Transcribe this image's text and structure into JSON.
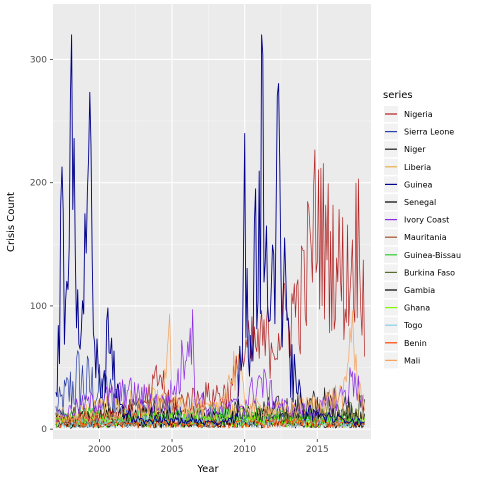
{
  "chart_data": {
    "type": "line",
    "title": "",
    "xlabel": "Year",
    "ylabel": "Crisis Count",
    "xlim": [
      1996.8,
      2018.7
    ],
    "ylim": [
      -8,
      345
    ],
    "x_ticks": [
      2000,
      2005,
      2010,
      2015
    ],
    "x_tick_labels": [
      "2000",
      "2005",
      "2010",
      "2015"
    ],
    "y_ticks": [
      0,
      100,
      200,
      300
    ],
    "y_tick_labels": [
      "0",
      "100",
      "200",
      "300"
    ],
    "grid": true,
    "legend_title": "series",
    "legend_position": "right",
    "series": [
      {
        "name": "Nigeria",
        "color": "#b22222",
        "mode": "seg",
        "x": [
          1997.0,
          2003.0,
          2004.2,
          2004.8,
          2006.5,
          2009.0,
          2010.0,
          2012.0,
          2013.0,
          2014.0,
          2015.0,
          2015.6,
          2016.3,
          2017.0,
          2017.5,
          2018.0,
          2018.3
        ],
        "values": [
          8,
          15,
          45,
          20,
          25,
          30,
          60,
          75,
          90,
          110,
          175,
          145,
          135,
          120,
          140,
          160,
          70
        ]
      },
      {
        "name": "Sierra Leone",
        "color": "#2b3fa8",
        "mode": "low",
        "x": [
          1997.0,
          1998.5,
          2000.0,
          2003.0,
          2006.0,
          2009.0,
          2012.0,
          2015.0,
          2018.3
        ],
        "values": [
          15,
          40,
          30,
          15,
          10,
          10,
          10,
          8,
          6
        ]
      },
      {
        "name": "Niger",
        "color": "#1a1a1a",
        "mode": "low",
        "x": [
          1997.0,
          2000.0,
          2004.0,
          2008.0,
          2010.0,
          2012.0,
          2016.0,
          2018.3
        ],
        "values": [
          10,
          12,
          15,
          10,
          15,
          15,
          20,
          15
        ]
      },
      {
        "name": "Liberia",
        "color": "#e8b04b",
        "mode": "low",
        "x": [
          1997.0,
          2000.0,
          2003.0,
          2006.0,
          2009.0,
          2012.0,
          2015.0,
          2018.3
        ],
        "values": [
          10,
          15,
          20,
          15,
          12,
          10,
          12,
          10
        ]
      },
      {
        "name": "Guinea",
        "color": "#00008b",
        "mode": "spike",
        "x": [
          1997.0,
          1997.4,
          1997.7,
          1998.1,
          1998.6,
          1999.3,
          2000.0,
          2000.6,
          2001.5,
          2003.0,
          2005.0,
          2008.0,
          2009.5,
          2010.0,
          2010.4,
          2010.7,
          2011.2,
          2011.7,
          2012.3,
          2013.0,
          2014.0,
          2016.0,
          2018.3
        ],
        "values": [
          30,
          220,
          90,
          330,
          60,
          285,
          40,
          100,
          20,
          8,
          8,
          6,
          10,
          240,
          70,
          180,
          330,
          70,
          290,
          90,
          20,
          10,
          6
        ]
      },
      {
        "name": "Senegal",
        "color": "#000000",
        "mode": "low",
        "x": [
          1997.0,
          2000.0,
          2004.0,
          2008.0,
          2012.0,
          2016.0,
          2018.3
        ],
        "values": [
          8,
          10,
          10,
          8,
          10,
          10,
          8
        ]
      },
      {
        "name": "Ivory Coast",
        "color": "#8a2be2",
        "mode": "seg",
        "x": [
          1997.0,
          1999.0,
          2002.0,
          2004.5,
          2005.5,
          2006.3,
          2006.6,
          2007.5,
          2010.0,
          2011.0,
          2012.0,
          2013.0,
          2015.0,
          2017.0,
          2017.6,
          2018.3
        ],
        "values": [
          10,
          20,
          30,
          20,
          40,
          95,
          30,
          15,
          20,
          40,
          25,
          15,
          15,
          30,
          45,
          10
        ]
      },
      {
        "name": "Mauritania",
        "color": "#a0522d",
        "mode": "low",
        "x": [
          1997.0,
          2002.0,
          2007.0,
          2012.0,
          2018.3
        ],
        "values": [
          5,
          6,
          5,
          6,
          5
        ]
      },
      {
        "name": "Guinea-Bissau",
        "color": "#32cd32",
        "mode": "low",
        "x": [
          1997.0,
          2000.0,
          2004.0,
          2008.0,
          2012.0,
          2016.0,
          2018.3
        ],
        "values": [
          8,
          10,
          8,
          12,
          10,
          8,
          6
        ]
      },
      {
        "name": "Burkina Faso",
        "color": "#556b2f",
        "mode": "low",
        "x": [
          1997.0,
          2003.0,
          2008.0,
          2012.0,
          2015.0,
          2017.0,
          2018.3
        ],
        "values": [
          4,
          5,
          6,
          8,
          15,
          20,
          15
        ]
      },
      {
        "name": "Gambia",
        "color": "#000000",
        "mode": "low",
        "x": [
          1997.0,
          2003.0,
          2009.0,
          2014.0,
          2018.3
        ],
        "values": [
          3,
          4,
          5,
          4,
          3
        ]
      },
      {
        "name": "Ghana",
        "color": "#7cfc00",
        "mode": "low",
        "x": [
          1997.0,
          2002.0,
          2007.0,
          2012.0,
          2018.3
        ],
        "values": [
          6,
          8,
          7,
          6,
          5
        ]
      },
      {
        "name": "Togo",
        "color": "#87ceeb",
        "mode": "low",
        "x": [
          1997.0,
          2003.0,
          2009.0,
          2014.0,
          2018.3
        ],
        "values": [
          4,
          6,
          5,
          5,
          4
        ]
      },
      {
        "name": "Benin",
        "color": "#ff4500",
        "mode": "low",
        "x": [
          1997.0,
          2003.0,
          2009.0,
          2014.0,
          2018.3
        ],
        "values": [
          4,
          5,
          4,
          5,
          4
        ]
      },
      {
        "name": "Mali",
        "color": "#f4a460",
        "mode": "seg",
        "x": [
          1997.0,
          2002.0,
          2004.4,
          2004.7,
          2005.0,
          2008.0,
          2009.5,
          2010.0,
          2012.0,
          2015.0,
          2017.0,
          2017.4,
          2017.8,
          2018.3
        ],
        "values": [
          8,
          12,
          20,
          100,
          20,
          15,
          55,
          20,
          15,
          20,
          30,
          95,
          30,
          20
        ]
      }
    ]
  }
}
